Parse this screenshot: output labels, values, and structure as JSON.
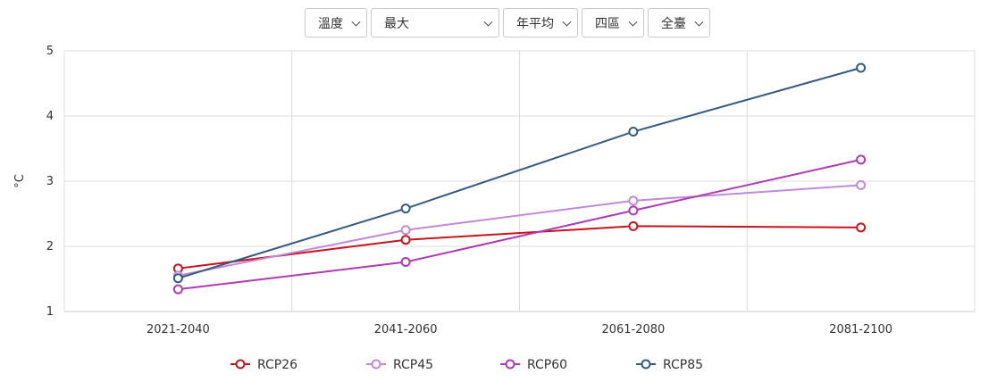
{
  "filters": [
    {
      "value": "溫度"
    },
    {
      "value": "最大"
    },
    {
      "value": "年平均"
    },
    {
      "value": "四區"
    },
    {
      "value": "全臺"
    }
  ],
  "chart_data": {
    "type": "line",
    "categories": [
      "2021-2040",
      "2041-2060",
      "2061-2080",
      "2081-2100"
    ],
    "ylabel": "°C",
    "ylim": [
      1,
      5
    ],
    "yticks": [
      1,
      2,
      3,
      4,
      5
    ],
    "grid": true,
    "legend_position": "bottom",
    "series": [
      {
        "name": "RCP26",
        "color": "#c4161c",
        "values": [
          1.66,
          2.1,
          2.31,
          2.29
        ]
      },
      {
        "name": "RCP45",
        "color": "#c08ad8",
        "values": [
          1.55,
          2.25,
          2.7,
          2.94
        ]
      },
      {
        "name": "RCP60",
        "color": "#ad3bb1",
        "values": [
          1.34,
          1.76,
          2.55,
          3.33
        ]
      },
      {
        "name": "RCP85",
        "color": "#355a80",
        "values": [
          1.51,
          2.58,
          3.76,
          4.74
        ]
      }
    ]
  }
}
